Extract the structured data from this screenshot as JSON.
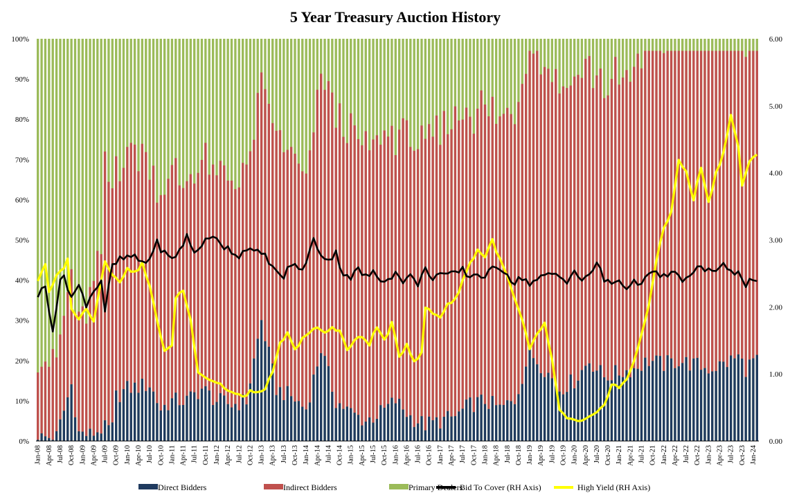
{
  "chart_data": {
    "type": "bar",
    "stacked": true,
    "normalized": true,
    "title": "5 Year Treasury Auction History",
    "ylim_left": [
      0,
      100
    ],
    "ylim_right": [
      0,
      6
    ],
    "yticks_left": [
      "0%",
      "10%",
      "20%",
      "30%",
      "40%",
      "50%",
      "60%",
      "70%",
      "80%",
      "90%",
      "100%"
    ],
    "yticks_right": [
      "0.00",
      "1.00",
      "2.00",
      "3.00",
      "4.00",
      "5.00",
      "6.00"
    ],
    "start_month": "Jan-08",
    "end_month": "Feb-24",
    "xtick_labels": [
      "Jan-08",
      "Apr-08",
      "Jul-08",
      "Oct-08",
      "Jan-09",
      "Apr-09",
      "Jul-09",
      "Oct-09",
      "Jan-10",
      "Apr-10",
      "Jul-10",
      "Oct-10",
      "Jan-11",
      "Apr-11",
      "Jul-11",
      "Oct-11",
      "Jan-12",
      "Apr-12",
      "Jul-12",
      "Oct-12",
      "Jan-13",
      "Apr-13",
      "Jul-13",
      "Oct-13",
      "Jan-14",
      "Apr-14",
      "Jul-14",
      "Oct-14",
      "Jan-15",
      "Apr-15",
      "Jul-15",
      "Oct-15",
      "Jan-16",
      "Apr-16",
      "Jul-16",
      "Oct-16",
      "Jan-17",
      "Apr-17",
      "Jul-17",
      "Oct-17",
      "Jan-18",
      "Apr-18",
      "Jul-18",
      "Oct-18",
      "Jan-19",
      "Apr-19",
      "Jul-19",
      "Oct-19",
      "Jan-20",
      "Apr-20",
      "Jul-20",
      "Oct-20",
      "Jan-21",
      "Apr-21",
      "Jul-21",
      "Oct-21",
      "Jan-22",
      "Apr-22",
      "Jul-22",
      "Oct-22",
      "Jan-23",
      "Apr-23",
      "Jul-23",
      "Oct-23",
      "Jan-24"
    ],
    "direct_anchors": [
      [
        0,
        0.8
      ],
      [
        5,
        1
      ],
      [
        9,
        14
      ],
      [
        11,
        2
      ],
      [
        14,
        1.5
      ],
      [
        17,
        3
      ],
      [
        20,
        3
      ],
      [
        21,
        11
      ],
      [
        24,
        13
      ],
      [
        30,
        14
      ],
      [
        33,
        8
      ],
      [
        36,
        10
      ],
      [
        40,
        10
      ],
      [
        44,
        13
      ],
      [
        48,
        10
      ],
      [
        52,
        9
      ],
      [
        56,
        10
      ],
      [
        60,
        30
      ],
      [
        64,
        13
      ],
      [
        68,
        11
      ],
      [
        72,
        8
      ],
      [
        76,
        23
      ],
      [
        80,
        10
      ],
      [
        84,
        7
      ],
      [
        88,
        5
      ],
      [
        92,
        7
      ],
      [
        96,
        10
      ],
      [
        100,
        6
      ],
      [
        104,
        4
      ],
      [
        108,
        5
      ],
      [
        112,
        6
      ],
      [
        116,
        9
      ],
      [
        120,
        10
      ],
      [
        124,
        8
      ],
      [
        128,
        10
      ],
      [
        132,
        22
      ],
      [
        136,
        18
      ],
      [
        140,
        13
      ],
      [
        144,
        15
      ],
      [
        148,
        20
      ],
      [
        152,
        16
      ],
      [
        156,
        17
      ],
      [
        160,
        18
      ],
      [
        164,
        20
      ],
      [
        168,
        19
      ],
      [
        172,
        20
      ],
      [
        176,
        19
      ],
      [
        180,
        18
      ],
      [
        184,
        19
      ],
      [
        188,
        21
      ],
      [
        190,
        18
      ],
      [
        192,
        20
      ],
      [
        193,
        19.5
      ]
    ],
    "indirect_anchors": [
      [
        0,
        21
      ],
      [
        5,
        18
      ],
      [
        9,
        28
      ],
      [
        11,
        26
      ],
      [
        14,
        33
      ],
      [
        17,
        45
      ],
      [
        18,
        63
      ],
      [
        20,
        58
      ],
      [
        24,
        59
      ],
      [
        28,
        58
      ],
      [
        32,
        54
      ],
      [
        36,
        56
      ],
      [
        40,
        54
      ],
      [
        44,
        57
      ],
      [
        48,
        55
      ],
      [
        52,
        57
      ],
      [
        56,
        56
      ],
      [
        60,
        58
      ],
      [
        64,
        63
      ],
      [
        68,
        60
      ],
      [
        72,
        56
      ],
      [
        76,
        68
      ],
      [
        80,
        72
      ],
      [
        84,
        69
      ],
      [
        88,
        68
      ],
      [
        92,
        68
      ],
      [
        96,
        66
      ],
      [
        100,
        71
      ],
      [
        104,
        68
      ],
      [
        108,
        72
      ],
      [
        112,
        74
      ],
      [
        116,
        73
      ],
      [
        120,
        73
      ],
      [
        124,
        71
      ],
      [
        128,
        73
      ],
      [
        132,
        78
      ],
      [
        136,
        77
      ],
      [
        140,
        76
      ],
      [
        144,
        76
      ],
      [
        148,
        74
      ],
      [
        152,
        72
      ],
      [
        156,
        73
      ],
      [
        160,
        73
      ],
      [
        164,
        80
      ],
      [
        168,
        82
      ],
      [
        172,
        82
      ],
      [
        176,
        86
      ],
      [
        180,
        88
      ],
      [
        184,
        86
      ],
      [
        188,
        85
      ],
      [
        190,
        84
      ],
      [
        192,
        82
      ],
      [
        193,
        80
      ]
    ],
    "bid_to_cover_anchors": [
      [
        0,
        2.18
      ],
      [
        2,
        2.3
      ],
      [
        4,
        1.68
      ],
      [
        6,
        2.35
      ],
      [
        7,
        2.48
      ],
      [
        9,
        2.15
      ],
      [
        11,
        2.3
      ],
      [
        13,
        2.05
      ],
      [
        15,
        2.25
      ],
      [
        17,
        2.4
      ],
      [
        18,
        1.95
      ],
      [
        20,
        2.6
      ],
      [
        22,
        2.7
      ],
      [
        25,
        2.75
      ],
      [
        27,
        2.7
      ],
      [
        29,
        2.65
      ],
      [
        31,
        2.85
      ],
      [
        32,
        2.95
      ],
      [
        34,
        2.8
      ],
      [
        36,
        2.7
      ],
      [
        38,
        2.85
      ],
      [
        40,
        3.05
      ],
      [
        42,
        2.8
      ],
      [
        44,
        2.95
      ],
      [
        46,
        3.0
      ],
      [
        48,
        3.05
      ],
      [
        50,
        2.9
      ],
      [
        52,
        2.85
      ],
      [
        54,
        2.75
      ],
      [
        56,
        2.9
      ],
      [
        58,
        2.8
      ],
      [
        60,
        2.8
      ],
      [
        62,
        2.7
      ],
      [
        64,
        2.5
      ],
      [
        66,
        2.45
      ],
      [
        68,
        2.65
      ],
      [
        70,
        2.55
      ],
      [
        72,
        2.65
      ],
      [
        74,
        3.0
      ],
      [
        76,
        2.8
      ],
      [
        78,
        2.7
      ],
      [
        80,
        2.8
      ],
      [
        82,
        2.5
      ],
      [
        84,
        2.45
      ],
      [
        86,
        2.55
      ],
      [
        88,
        2.45
      ],
      [
        90,
        2.5
      ],
      [
        92,
        2.4
      ],
      [
        94,
        2.45
      ],
      [
        96,
        2.5
      ],
      [
        98,
        2.4
      ],
      [
        100,
        2.45
      ],
      [
        102,
        2.35
      ],
      [
        104,
        2.55
      ],
      [
        106,
        2.45
      ],
      [
        108,
        2.5
      ],
      [
        110,
        2.45
      ],
      [
        112,
        2.5
      ],
      [
        114,
        2.55
      ],
      [
        116,
        2.45
      ],
      [
        118,
        2.5
      ],
      [
        120,
        2.45
      ],
      [
        122,
        2.55
      ],
      [
        124,
        2.6
      ],
      [
        126,
        2.5
      ],
      [
        128,
        2.35
      ],
      [
        130,
        2.45
      ],
      [
        132,
        2.35
      ],
      [
        134,
        2.4
      ],
      [
        136,
        2.45
      ],
      [
        138,
        2.5
      ],
      [
        140,
        2.45
      ],
      [
        142,
        2.4
      ],
      [
        144,
        2.55
      ],
      [
        146,
        2.35
      ],
      [
        148,
        2.5
      ],
      [
        150,
        2.65
      ],
      [
        152,
        2.4
      ],
      [
        154,
        2.35
      ],
      [
        156,
        2.4
      ],
      [
        158,
        2.3
      ],
      [
        160,
        2.35
      ],
      [
        162,
        2.4
      ],
      [
        164,
        2.45
      ],
      [
        166,
        2.5
      ],
      [
        168,
        2.45
      ],
      [
        170,
        2.5
      ],
      [
        172,
        2.45
      ],
      [
        174,
        2.4
      ],
      [
        176,
        2.5
      ],
      [
        178,
        2.6
      ],
      [
        180,
        2.55
      ],
      [
        182,
        2.55
      ],
      [
        184,
        2.6
      ],
      [
        186,
        2.5
      ],
      [
        188,
        2.55
      ],
      [
        190,
        2.35
      ],
      [
        192,
        2.4
      ],
      [
        193,
        2.43
      ]
    ],
    "high_yield_anchors": [
      [
        0,
        2.4
      ],
      [
        2,
        2.65
      ],
      [
        3,
        2.2
      ],
      [
        5,
        2.45
      ],
      [
        7,
        2.6
      ],
      [
        8,
        2.7
      ],
      [
        9,
        2.0
      ],
      [
        11,
        1.8
      ],
      [
        13,
        2.0
      ],
      [
        15,
        1.8
      ],
      [
        17,
        2.4
      ],
      [
        18,
        2.7
      ],
      [
        20,
        2.5
      ],
      [
        22,
        2.35
      ],
      [
        24,
        2.6
      ],
      [
        26,
        2.5
      ],
      [
        28,
        2.65
      ],
      [
        30,
        2.3
      ],
      [
        32,
        1.8
      ],
      [
        34,
        1.35
      ],
      [
        36,
        1.4
      ],
      [
        37,
        2.15
      ],
      [
        39,
        2.25
      ],
      [
        41,
        1.8
      ],
      [
        43,
        1.05
      ],
      [
        45,
        0.95
      ],
      [
        47,
        0.9
      ],
      [
        49,
        0.85
      ],
      [
        51,
        0.75
      ],
      [
        53,
        0.7
      ],
      [
        55,
        0.65
      ],
      [
        57,
        0.75
      ],
      [
        59,
        0.7
      ],
      [
        61,
        0.8
      ],
      [
        63,
        1.0
      ],
      [
        65,
        1.45
      ],
      [
        67,
        1.6
      ],
      [
        69,
        1.35
      ],
      [
        71,
        1.55
      ],
      [
        73,
        1.6
      ],
      [
        75,
        1.7
      ],
      [
        77,
        1.6
      ],
      [
        79,
        1.7
      ],
      [
        81,
        1.65
      ],
      [
        83,
        1.35
      ],
      [
        85,
        1.5
      ],
      [
        87,
        1.55
      ],
      [
        89,
        1.45
      ],
      [
        91,
        1.7
      ],
      [
        93,
        1.5
      ],
      [
        95,
        1.75
      ],
      [
        97,
        1.25
      ],
      [
        99,
        1.45
      ],
      [
        101,
        1.2
      ],
      [
        103,
        1.3
      ],
      [
        104,
        2.0
      ],
      [
        106,
        1.9
      ],
      [
        108,
        1.85
      ],
      [
        110,
        2.05
      ],
      [
        112,
        2.1
      ],
      [
        114,
        2.4
      ],
      [
        116,
        2.65
      ],
      [
        118,
        2.85
      ],
      [
        120,
        2.75
      ],
      [
        122,
        3.0
      ],
      [
        124,
        2.7
      ],
      [
        126,
        2.45
      ],
      [
        128,
        2.1
      ],
      [
        130,
        1.8
      ],
      [
        132,
        1.35
      ],
      [
        134,
        1.6
      ],
      [
        136,
        1.75
      ],
      [
        138,
        1.2
      ],
      [
        140,
        0.45
      ],
      [
        142,
        0.35
      ],
      [
        144,
        0.3
      ],
      [
        146,
        0.28
      ],
      [
        148,
        0.35
      ],
      [
        150,
        0.4
      ],
      [
        152,
        0.55
      ],
      [
        154,
        0.85
      ],
      [
        156,
        0.8
      ],
      [
        158,
        0.9
      ],
      [
        160,
        1.2
      ],
      [
        162,
        1.6
      ],
      [
        164,
        2.0
      ],
      [
        166,
        2.7
      ],
      [
        168,
        3.2
      ],
      [
        170,
        3.4
      ],
      [
        172,
        4.2
      ],
      [
        174,
        4.0
      ],
      [
        176,
        3.6
      ],
      [
        178,
        4.1
      ],
      [
        180,
        3.55
      ],
      [
        182,
        4.0
      ],
      [
        184,
        4.3
      ],
      [
        186,
        4.85
      ],
      [
        188,
        4.4
      ],
      [
        189,
        3.8
      ],
      [
        191,
        4.15
      ],
      [
        193,
        4.3
      ]
    ],
    "legend": [
      "Direct Bidders",
      "Indirect Bidders",
      "Primary Dealers",
      "Bid To Cover (RH Axis)",
      "High Yield (RH Axis)"
    ],
    "legend_position": "bottom",
    "colors": {
      "direct": "#1f3a5f",
      "indirect": "#c0504d",
      "primary": "#9bbb59",
      "bid_to_cover": "#000000",
      "high_yield": "#ffff00"
    },
    "grid": false
  }
}
